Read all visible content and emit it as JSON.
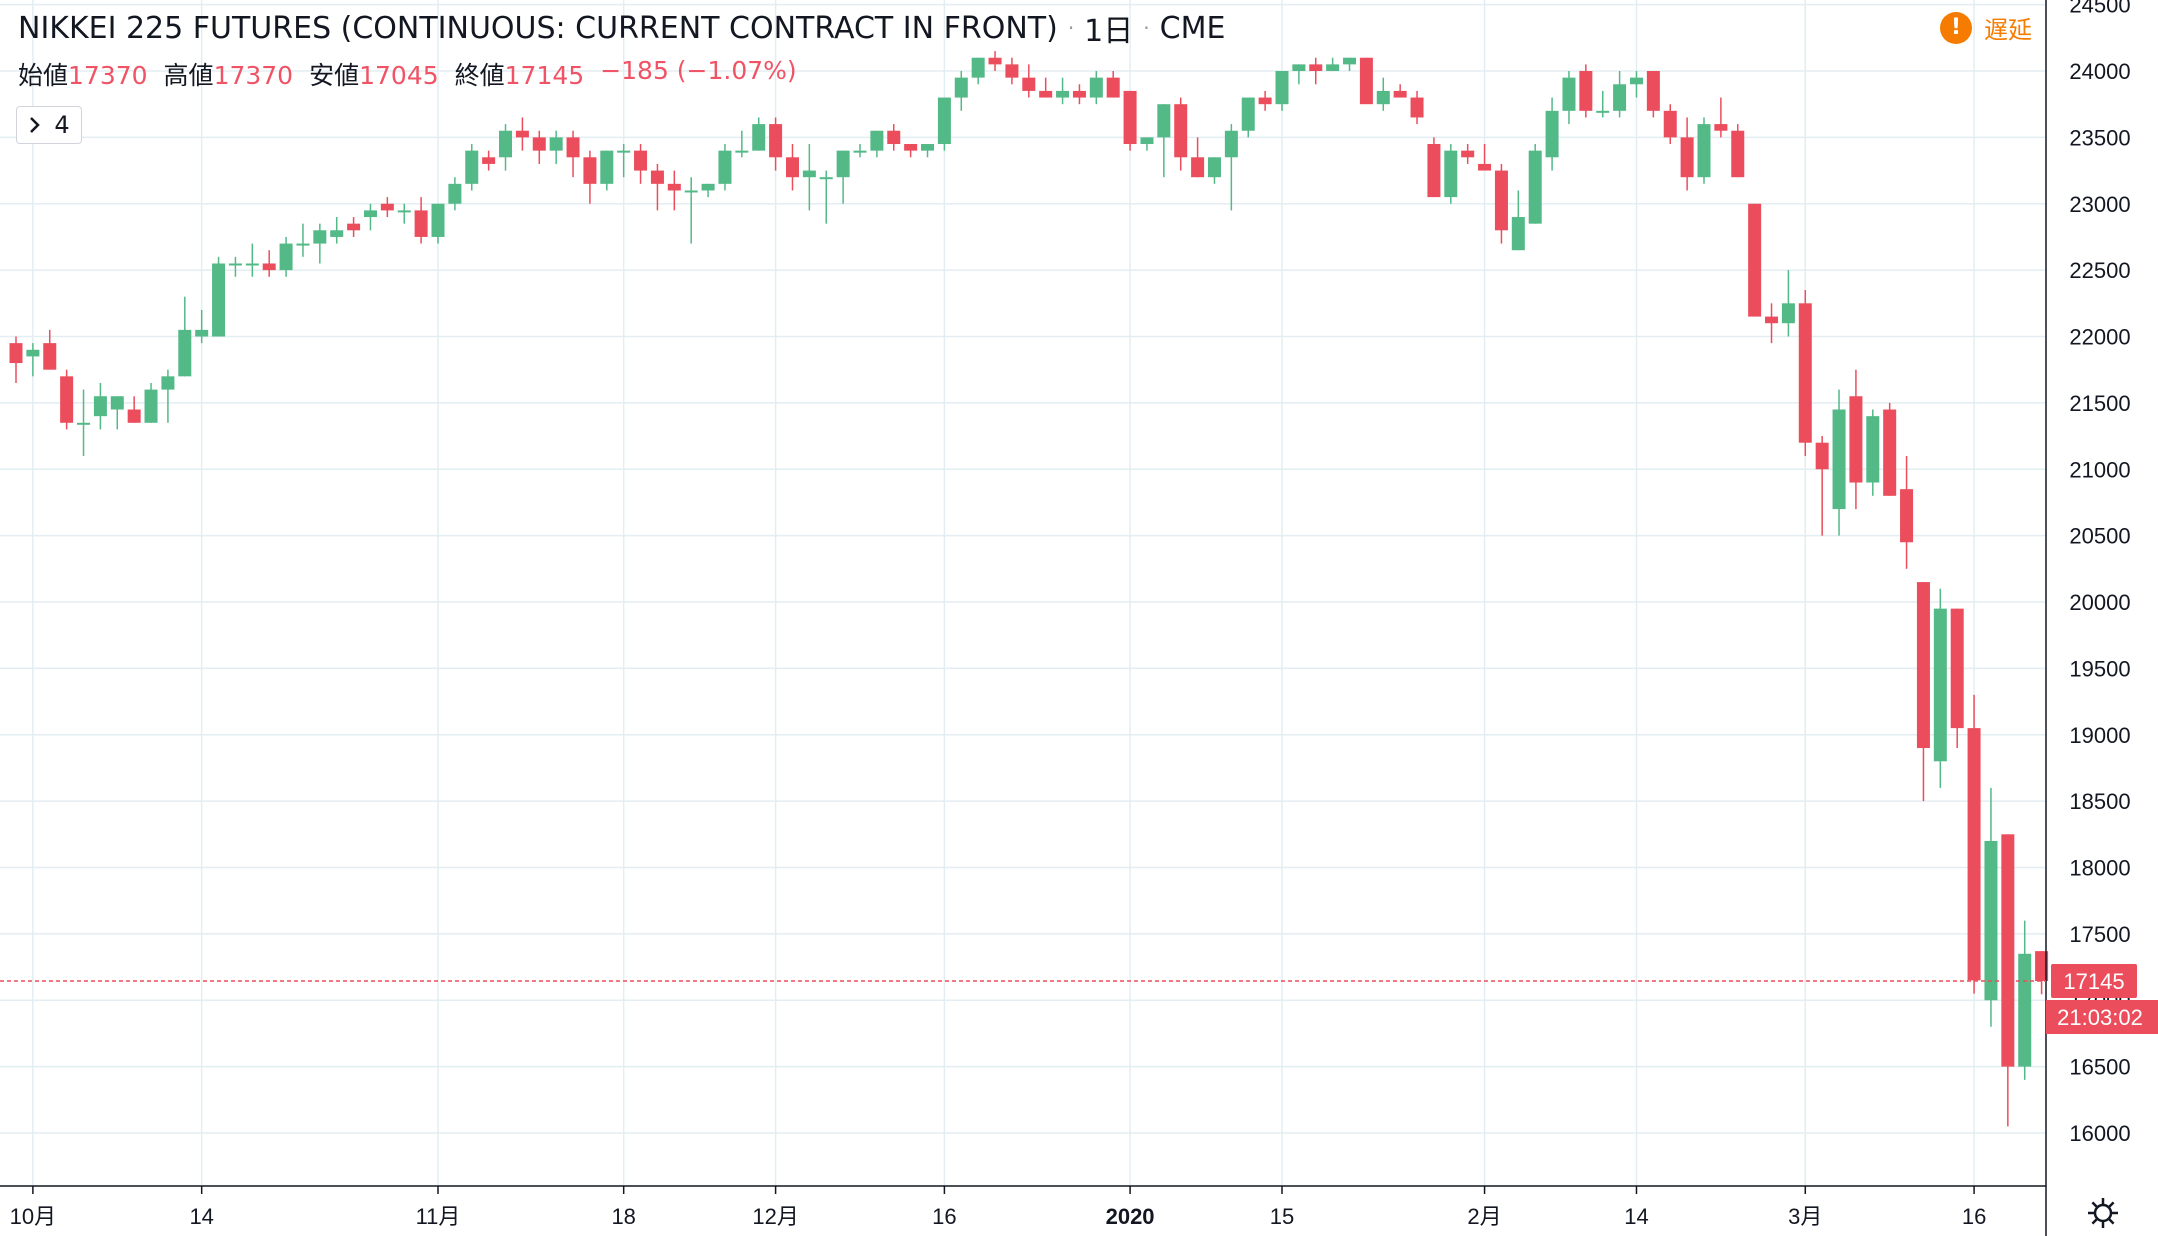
{
  "header": {
    "title": "NIKKEI 225 FUTURES (CONTINUOUS: CURRENT CONTRACT IN FRONT)",
    "interval": "1日",
    "exchange": "CME",
    "open_label": "始値",
    "open": "17370",
    "high_label": "高値",
    "high": "17370",
    "low_label": "安値",
    "low": "17045",
    "close_label": "終値",
    "close": "17145",
    "change": "−185 (−1.07%)"
  },
  "indicators_toggle": {
    "icon": "chevron-right-icon",
    "count": "4"
  },
  "delay": {
    "icon": "exclamation-icon",
    "label": "遅延"
  },
  "settings": {
    "icon": "gear-icon"
  },
  "colors": {
    "up": "#53b987",
    "down": "#eb4d5c",
    "grid": "#e3eef2",
    "axis_text": "#131722"
  },
  "chart_data": {
    "type": "candlestick",
    "ylim": [
      15600,
      24500
    ],
    "y_ticks": [
      16000,
      16500,
      17000,
      17500,
      18000,
      18500,
      19000,
      19500,
      20000,
      20500,
      21000,
      21500,
      22000,
      22500,
      23000,
      23500,
      24000,
      24500
    ],
    "x_labels": [
      {
        "i": 1,
        "text": "10月",
        "bold": false
      },
      {
        "i": 11,
        "text": "14",
        "bold": false
      },
      {
        "i": 25,
        "text": "11月",
        "bold": false
      },
      {
        "i": 36,
        "text": "18",
        "bold": false
      },
      {
        "i": 45,
        "text": "12月",
        "bold": false
      },
      {
        "i": 55,
        "text": "16",
        "bold": false
      },
      {
        "i": 66,
        "text": "2020",
        "bold": true
      },
      {
        "i": 75,
        "text": "15",
        "bold": false
      },
      {
        "i": 87,
        "text": "2月",
        "bold": false
      },
      {
        "i": 96,
        "text": "14",
        "bold": false
      },
      {
        "i": 106,
        "text": "3月",
        "bold": false
      },
      {
        "i": 116,
        "text": "16",
        "bold": false
      }
    ],
    "last_price": {
      "value": 17145,
      "label": "17145",
      "countdown": "21:03:02"
    },
    "candles": [
      [
        21950,
        22000,
        21650,
        21800
      ],
      [
        21850,
        21950,
        21700,
        21900
      ],
      [
        21950,
        22050,
        21750,
        21750
      ],
      [
        21700,
        21750,
        21300,
        21350
      ],
      [
        21350,
        21600,
        21100,
        21350
      ],
      [
        21400,
        21650,
        21300,
        21550
      ],
      [
        21450,
        21550,
        21300,
        21550
      ],
      [
        21450,
        21550,
        21350,
        21350
      ],
      [
        21350,
        21650,
        21350,
        21600
      ],
      [
        21600,
        21750,
        21350,
        21700
      ],
      [
        21700,
        22300,
        21700,
        22050
      ],
      [
        22000,
        22200,
        21950,
        22050
      ],
      [
        22000,
        22600,
        22000,
        22550
      ],
      [
        22550,
        22600,
        22450,
        22550
      ],
      [
        22550,
        22700,
        22450,
        22550
      ],
      [
        22550,
        22650,
        22450,
        22500
      ],
      [
        22500,
        22750,
        22450,
        22700
      ],
      [
        22700,
        22850,
        22600,
        22700
      ],
      [
        22700,
        22850,
        22550,
        22800
      ],
      [
        22750,
        22900,
        22700,
        22800
      ],
      [
        22850,
        22900,
        22750,
        22800
      ],
      [
        22900,
        23000,
        22800,
        22950
      ],
      [
        23000,
        23050,
        22900,
        22950
      ],
      [
        22950,
        23000,
        22850,
        22950
      ],
      [
        22950,
        23050,
        22700,
        22750
      ],
      [
        22750,
        23000,
        22700,
        23000
      ],
      [
        23000,
        23200,
        22950,
        23150
      ],
      [
        23150,
        23450,
        23100,
        23400
      ],
      [
        23350,
        23400,
        23250,
        23300
      ],
      [
        23350,
        23600,
        23250,
        23550
      ],
      [
        23550,
        23650,
        23400,
        23500
      ],
      [
        23500,
        23550,
        23300,
        23400
      ],
      [
        23400,
        23550,
        23300,
        23500
      ],
      [
        23500,
        23550,
        23200,
        23350
      ],
      [
        23350,
        23400,
        23000,
        23150
      ],
      [
        23150,
        23400,
        23100,
        23400
      ],
      [
        23400,
        23450,
        23200,
        23400
      ],
      [
        23400,
        23450,
        23150,
        23250
      ],
      [
        23250,
        23300,
        22950,
        23150
      ],
      [
        23150,
        23250,
        22950,
        23100
      ],
      [
        23100,
        23200,
        22700,
        23100
      ],
      [
        23100,
        23150,
        23050,
        23150
      ],
      [
        23150,
        23450,
        23100,
        23400
      ],
      [
        23400,
        23550,
        23350,
        23400
      ],
      [
        23400,
        23650,
        23400,
        23600
      ],
      [
        23600,
        23650,
        23250,
        23350
      ],
      [
        23350,
        23450,
        23100,
        23200
      ],
      [
        23200,
        23450,
        22950,
        23250
      ],
      [
        23200,
        23250,
        22850,
        23200
      ],
      [
        23200,
        23400,
        23000,
        23400
      ],
      [
        23400,
        23450,
        23350,
        23400
      ],
      [
        23400,
        23550,
        23350,
        23550
      ],
      [
        23550,
        23600,
        23400,
        23450
      ],
      [
        23450,
        23450,
        23350,
        23400
      ],
      [
        23400,
        23450,
        23350,
        23450
      ],
      [
        23450,
        23800,
        23400,
        23800
      ],
      [
        23800,
        24000,
        23700,
        23950
      ],
      [
        23950,
        24100,
        23900,
        24100
      ],
      [
        24100,
        24150,
        24000,
        24050
      ],
      [
        24050,
        24100,
        23900,
        23950
      ],
      [
        23950,
        24050,
        23800,
        23850
      ],
      [
        23850,
        23950,
        23800,
        23800
      ],
      [
        23800,
        23950,
        23750,
        23850
      ],
      [
        23850,
        23900,
        23750,
        23800
      ],
      [
        23800,
        24000,
        23750,
        23950
      ],
      [
        23950,
        24000,
        23800,
        23800
      ],
      [
        23850,
        23850,
        23400,
        23450
      ],
      [
        23450,
        23500,
        23400,
        23500
      ],
      [
        23500,
        23750,
        23200,
        23750
      ],
      [
        23750,
        23800,
        23250,
        23350
      ],
      [
        23350,
        23500,
        23200,
        23200
      ],
      [
        23200,
        23350,
        23150,
        23350
      ],
      [
        23350,
        23600,
        22950,
        23550
      ],
      [
        23550,
        23800,
        23500,
        23800
      ],
      [
        23800,
        23850,
        23700,
        23750
      ],
      [
        23750,
        24000,
        23700,
        24000
      ],
      [
        24000,
        24050,
        23900,
        24050
      ],
      [
        24050,
        24100,
        23900,
        24000
      ],
      [
        24000,
        24100,
        24000,
        24050
      ],
      [
        24050,
        24100,
        24000,
        24100
      ],
      [
        24100,
        24100,
        23800,
        23750
      ],
      [
        23750,
        23950,
        23700,
        23850
      ],
      [
        23850,
        23900,
        23800,
        23800
      ],
      [
        23800,
        23850,
        23600,
        23650
      ],
      [
        23450,
        23500,
        23050,
        23050
      ],
      [
        23050,
        23450,
        23000,
        23400
      ],
      [
        23400,
        23450,
        23300,
        23350
      ],
      [
        23300,
        23450,
        23300,
        23250
      ],
      [
        23250,
        23300,
        22700,
        22800
      ],
      [
        22650,
        23100,
        22650,
        22900
      ],
      [
        22850,
        23450,
        22850,
        23400
      ],
      [
        23350,
        23800,
        23250,
        23700
      ],
      [
        23700,
        24000,
        23600,
        23950
      ],
      [
        24000,
        24050,
        23650,
        23700
      ],
      [
        23700,
        23850,
        23650,
        23700
      ],
      [
        23700,
        24000,
        23650,
        23900
      ],
      [
        23900,
        24000,
        23800,
        23950
      ],
      [
        24000,
        24000,
        23650,
        23700
      ],
      [
        23700,
        23750,
        23450,
        23500
      ],
      [
        23500,
        23650,
        23100,
        23200
      ],
      [
        23200,
        23650,
        23150,
        23600
      ],
      [
        23600,
        23800,
        23500,
        23550
      ],
      [
        23550,
        23600,
        23200,
        23200
      ],
      [
        23000,
        23000,
        22150,
        22150
      ],
      [
        22150,
        22250,
        21950,
        22100
      ],
      [
        22100,
        22500,
        22000,
        22250
      ],
      [
        22250,
        22350,
        21100,
        21200
      ],
      [
        21200,
        21250,
        20500,
        21000
      ],
      [
        20700,
        21600,
        20500,
        21450
      ],
      [
        21550,
        21750,
        20700,
        20900
      ],
      [
        20900,
        21450,
        20800,
        21400
      ],
      [
        21450,
        21500,
        20800,
        20800
      ],
      [
        20850,
        21100,
        20250,
        20450
      ],
      [
        20150,
        20150,
        18500,
        18900
      ],
      [
        18800,
        20100,
        18600,
        19950
      ],
      [
        19950,
        19950,
        18900,
        19050
      ],
      [
        19050,
        19300,
        17050,
        17150
      ],
      [
        17000,
        18600,
        16800,
        18200
      ],
      [
        18250,
        18250,
        16050,
        16500
      ],
      [
        16500,
        17600,
        16400,
        17350
      ],
      [
        17370,
        17370,
        17045,
        17145
      ]
    ]
  }
}
